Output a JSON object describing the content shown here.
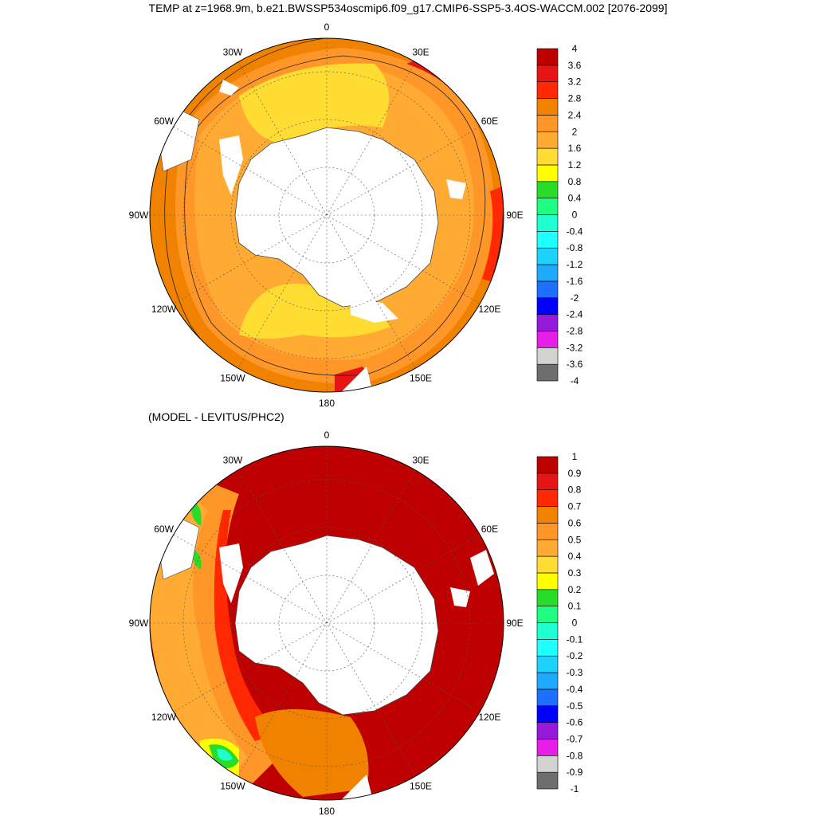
{
  "title": "TEMP at z=1968.9m, b.e21.BWSSP534oscmip6.f09_g17.CMIP6-SSP5-3.4OS-WACCM.002 [2076-2099]",
  "subtitle": "(MODEL - LEVITUS/PHC2)",
  "longitude_labels": [
    "0",
    "30E",
    "60E",
    "90E",
    "120E",
    "150E",
    "180",
    "150W",
    "120W",
    "90W",
    "60W",
    "30W"
  ],
  "colors": {
    "temp_scale": [
      "#6e6e6e",
      "#d2d2d2",
      "#e61ee6",
      "#9619dc",
      "#0000ff",
      "#1e6eff",
      "#1eaaff",
      "#1ed2ff",
      "#1effff",
      "#1effd2",
      "#1eff82",
      "#28dc28",
      "#ffff00",
      "#ffdc32",
      "#ffaa32",
      "#ff9628",
      "#f08200",
      "#ff2800",
      "#e61414",
      "#be0000"
    ],
    "diff_scale": [
      "#6e6e6e",
      "#d2d2d2",
      "#e61ee6",
      "#9619dc",
      "#0000ff",
      "#1e6eff",
      "#1eaaff",
      "#1ed2ff",
      "#1effff",
      "#1effd2",
      "#1eff82",
      "#28dc28",
      "#ffff00",
      "#ffdc32",
      "#ffaa32",
      "#ff9628",
      "#f08200",
      "#ff2800",
      "#e61414",
      "#be0000"
    ]
  },
  "chart_data": [
    {
      "type": "heatmap",
      "title": "TEMP at z=1968.9m, b.e21.BWSSP534oscmip6.f09_g17.CMIP6-SSP5-3.4OS-WACCM.002 [2076-2099]",
      "projection": "south polar stereographic",
      "longitude_labels": [
        "0",
        "30E",
        "60E",
        "90E",
        "120E",
        "150E",
        "180",
        "150W",
        "120W",
        "90W",
        "60W",
        "30W"
      ],
      "colorbar_ticks": [
        "4",
        "3.6",
        "3.2",
        "2.8",
        "2.4",
        "2",
        "1.6",
        "1.2",
        "0.8",
        "0.4",
        "0",
        "-0.4",
        "-0.8",
        "-1.2",
        "-1.6",
        "-2",
        "-2.4",
        "-2.8",
        "-3.2",
        "-3.6",
        "-4"
      ],
      "levels": [
        -4,
        4
      ],
      "field_summary": "Mostly 2.0-2.8 in outer ring, 1.6-2.0 (yellow) band near Weddell and Ross seas, up to 3.2-4.0 near 30E-150E edges"
    },
    {
      "type": "heatmap",
      "title": "(MODEL - LEVITUS/PHC2)",
      "projection": "south polar stereographic",
      "longitude_labels": [
        "0",
        "30E",
        "60E",
        "90E",
        "120E",
        "150E",
        "180",
        "150W",
        "120W",
        "90W",
        "60W",
        "30W"
      ],
      "colorbar_ticks": [
        "1",
        "0.9",
        "0.8",
        "0.7",
        "0.6",
        "0.5",
        "0.4",
        "0.3",
        "0.2",
        "0.1",
        "0",
        "-0.1",
        "-0.2",
        "-0.3",
        "-0.4",
        "-0.5",
        "-0.6",
        "-0.7",
        "-0.8",
        "-0.9",
        "-1"
      ],
      "levels": [
        -1,
        1
      ],
      "field_summary": "Mostly >0.9 over eastern hemisphere and near Antarctica, decreasing to 0.3-0.6 toward 90W-150W, with small 0-0.2 patches near 150W and 30W-60W"
    }
  ]
}
